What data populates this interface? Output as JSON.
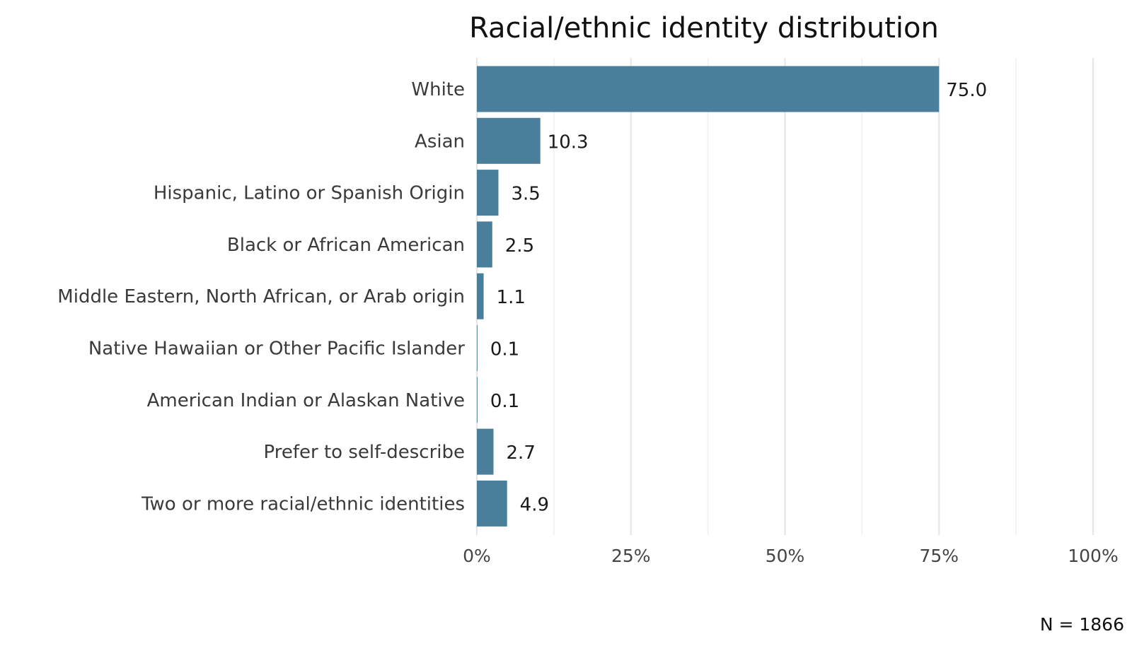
{
  "chart_data": {
    "type": "bar",
    "orientation": "horizontal",
    "title": "Racial/ethnic identity distribution",
    "categories": [
      "White",
      "Asian",
      "Hispanic, Latino or Spanish Origin",
      "Black or African American",
      "Middle Eastern, North African, or Arab origin",
      "Native Hawaiian or Other Pacific Islander",
      "American Indian or Alaskan Native",
      "Prefer to self-describe",
      "Two or more racial/ethnic identities"
    ],
    "values": [
      75.0,
      10.3,
      3.5,
      2.5,
      1.1,
      0.1,
      0.1,
      2.7,
      4.9
    ],
    "value_labels": [
      "75.0",
      "10.3",
      "3.5",
      "2.5",
      "1.1",
      "0.1",
      "0.1",
      "2.7",
      "4.9"
    ],
    "xlim": [
      0,
      100
    ],
    "x_ticks": [
      0,
      25,
      50,
      75,
      100
    ],
    "x_tick_labels": [
      "0%",
      "25%",
      "50%",
      "75%",
      "100%"
    ],
    "xlabel": "",
    "ylabel": "",
    "grid": "vertical",
    "legend": "none",
    "bar_color": "#4a7f9c",
    "note": "N = 1866"
  }
}
